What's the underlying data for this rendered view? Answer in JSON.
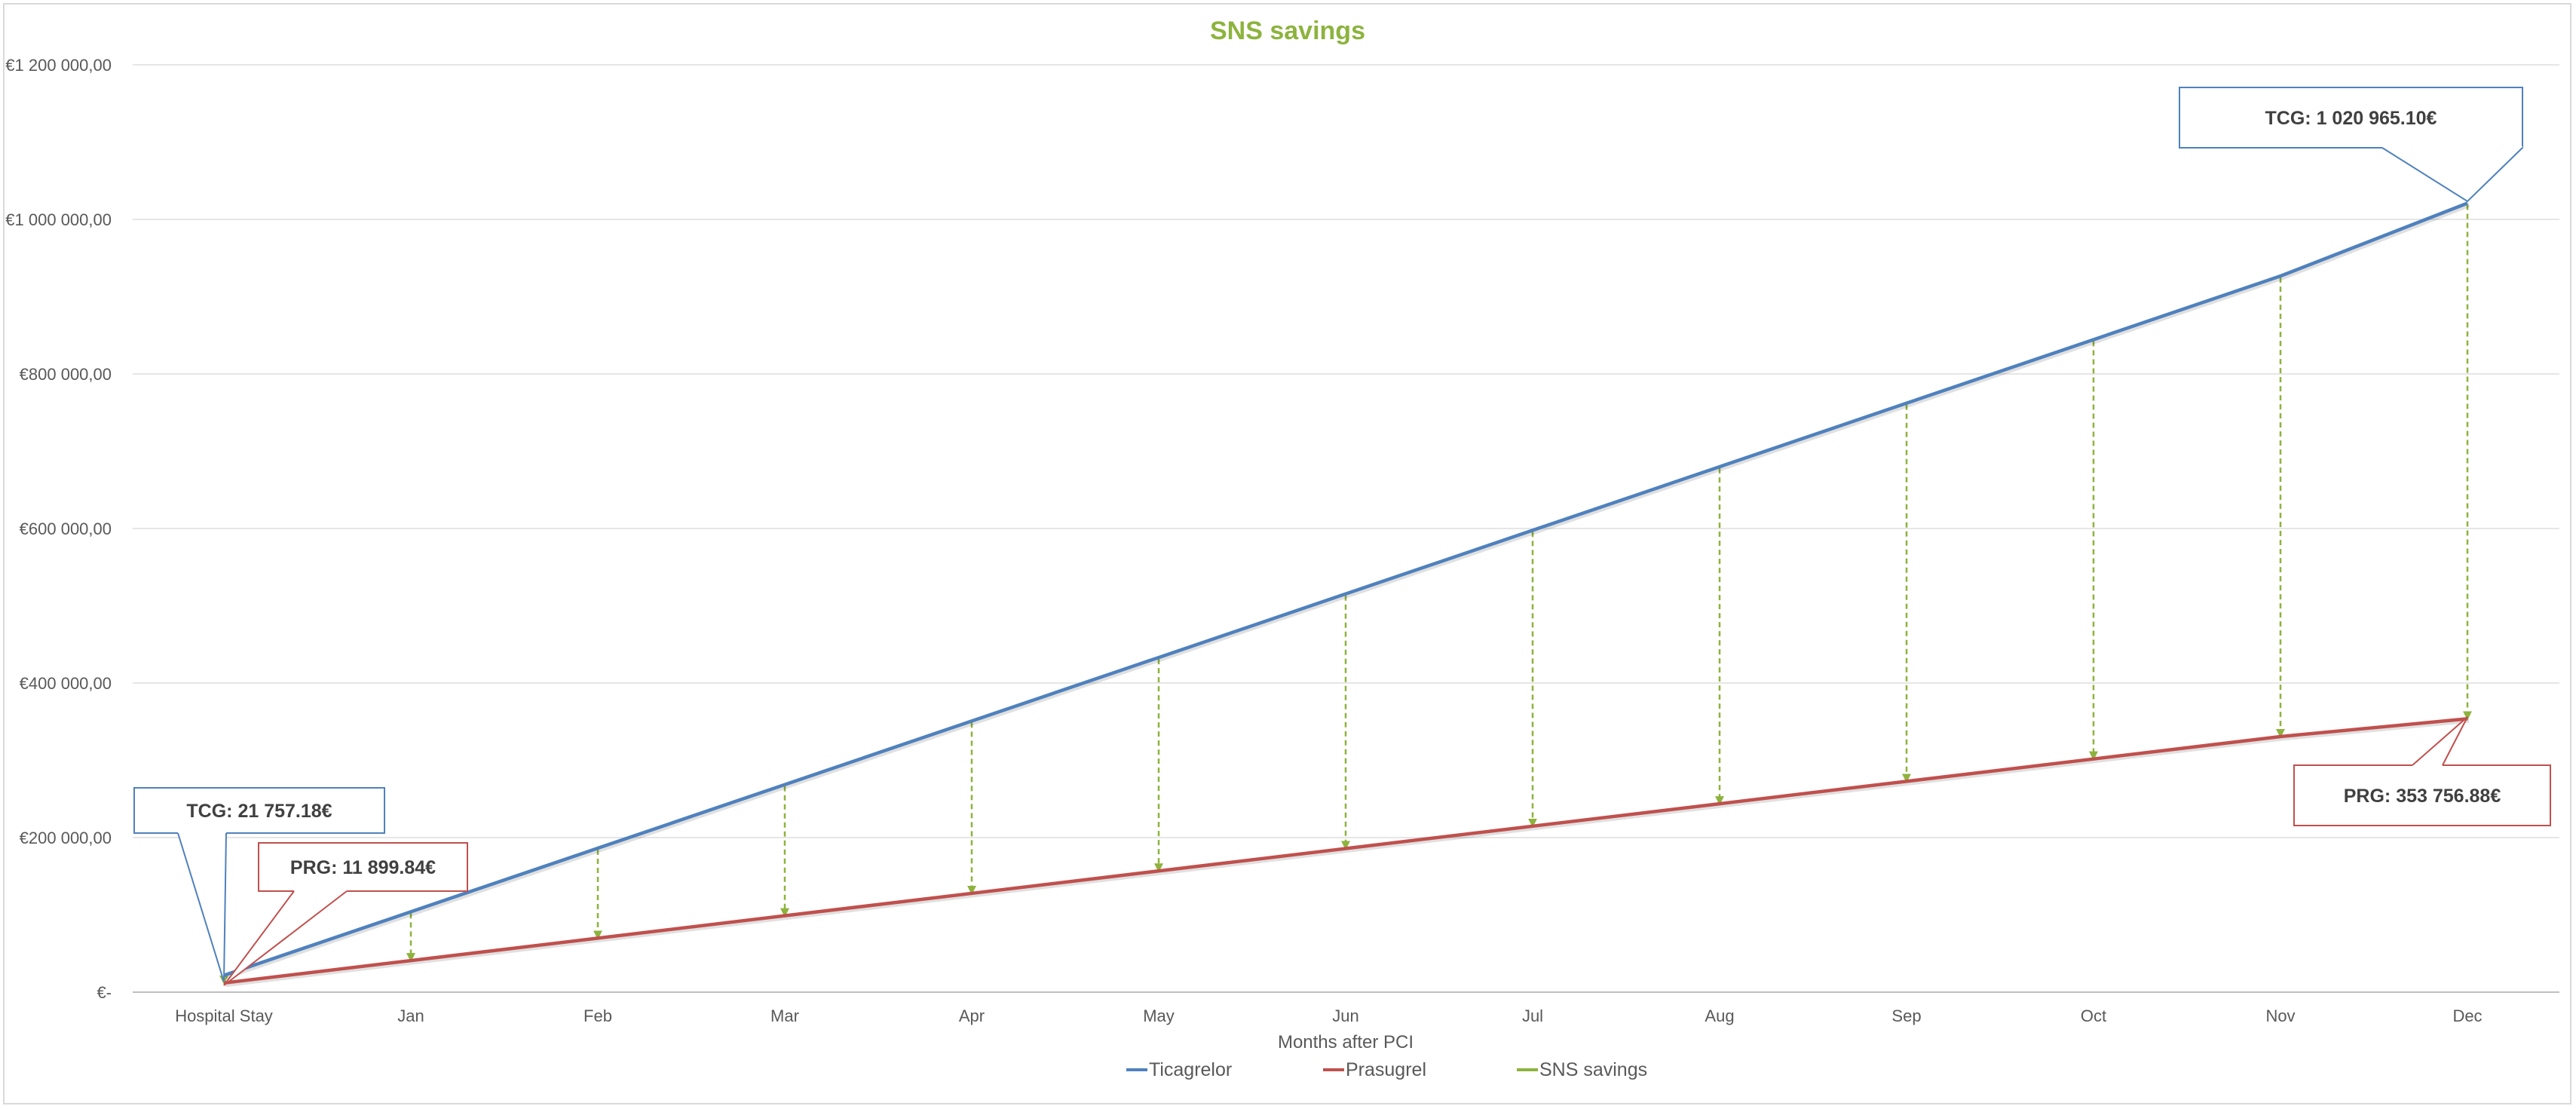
{
  "colors": {
    "ticagrelor": "#4f81bd",
    "prasugrel": "#c0504d",
    "savings": "#8db33e",
    "grid": "#e6e6e6",
    "axis": "#bfbfbf",
    "title": "#8db33e"
  },
  "chart_data": {
    "type": "line",
    "title": "SNS savings",
    "xlabel": "Months after PCI",
    "ylabel": "",
    "categories": [
      "Hospital Stay",
      "Jan",
      "Feb",
      "Mar",
      "Apr",
      "May",
      "Jun",
      "Jul",
      "Aug",
      "Sep",
      "Oct",
      "Nov",
      "Dec"
    ],
    "ylim": [
      0,
      1200000
    ],
    "y_ticks": [
      {
        "value": 0,
        "label": "€-"
      },
      {
        "value": 200000,
        "label": "€200 000,00"
      },
      {
        "value": 400000,
        "label": "€400 000,00"
      },
      {
        "value": 600000,
        "label": "€600 000,00"
      },
      {
        "value": 800000,
        "label": "€800 000,00"
      },
      {
        "value": 1000000,
        "label": "€1 000 000,00"
      },
      {
        "value": 1200000,
        "label": "€1 200 000,00"
      }
    ],
    "series": [
      {
        "name": "Ticagrelor",
        "values": [
          21757.18,
          104025,
          186293,
          268560,
          350828,
          433096,
          515363,
          597631,
          679899,
          762166,
          844434,
          926701,
          1020965.1
        ]
      },
      {
        "name": "Prasugrel",
        "values": [
          11899.84,
          40887,
          69875,
          98863,
          127851,
          156839,
          185827,
          214815,
          243803,
          272791,
          301779,
          330767,
          353756.88
        ]
      }
    ],
    "savings_series_name": "SNS savings",
    "grid": true,
    "legend_position": "bottom",
    "annotations": [
      {
        "series": "Ticagrelor",
        "category": "Hospital Stay",
        "text": "TCG: 21 757.18€"
      },
      {
        "series": "Prasugrel",
        "category": "Hospital Stay",
        "text": "PRG: 11 899.84€"
      },
      {
        "series": "Ticagrelor",
        "category": "Dec",
        "text": "TCG: 1 020 965.10€"
      },
      {
        "series": "Prasugrel",
        "category": "Dec",
        "text": "PRG: 353 756.88€"
      }
    ]
  }
}
